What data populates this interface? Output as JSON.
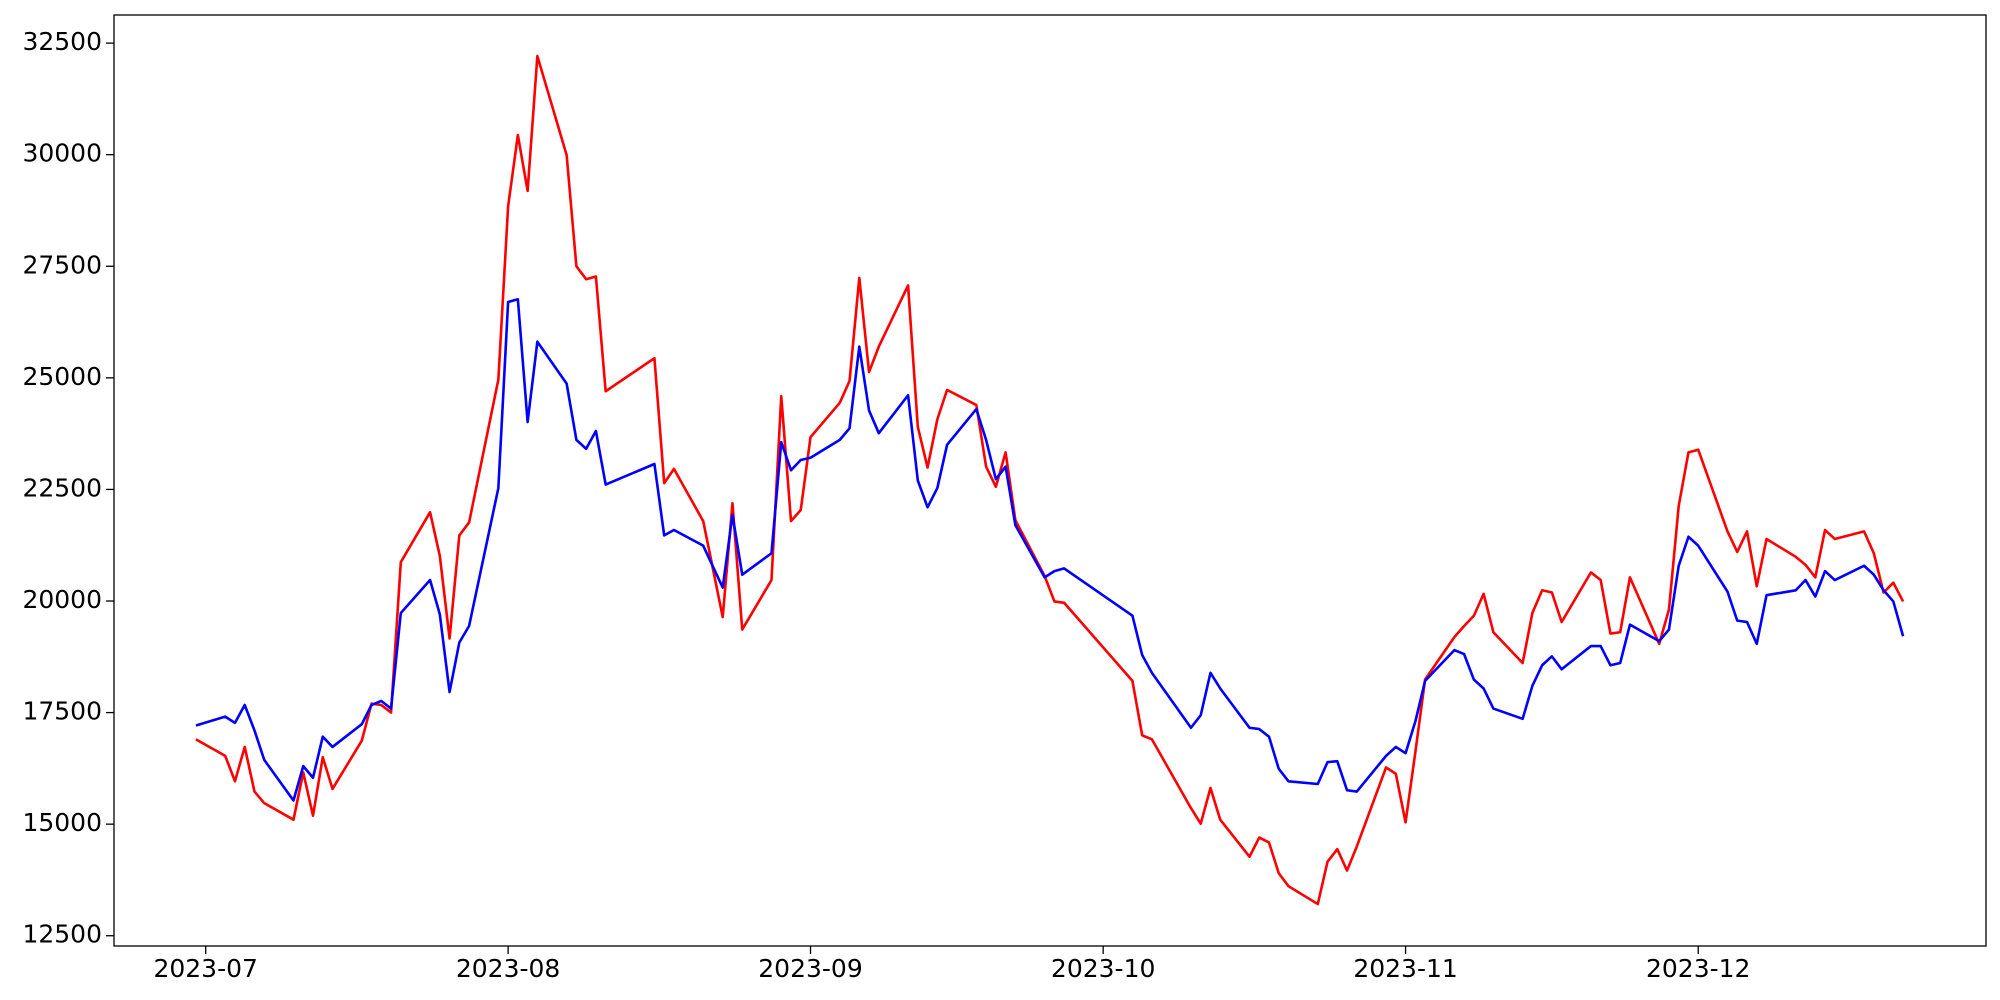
{
  "chart_data": {
    "type": "line",
    "x": [
      -1,
      2,
      3,
      4,
      5,
      6,
      9,
      10,
      11,
      12,
      13,
      16,
      17,
      18,
      19,
      20,
      23,
      24,
      25,
      26,
      27,
      30,
      31,
      32,
      33,
      34,
      37,
      38,
      39,
      40,
      41,
      46,
      47,
      48,
      51,
      53,
      54,
      55,
      58,
      59,
      60,
      61,
      62,
      65,
      66,
      67,
      68,
      69,
      72,
      73,
      74,
      75,
      76,
      79,
      80,
      81,
      82,
      83,
      86,
      87,
      88,
      95,
      96,
      97,
      101,
      102,
      103,
      104,
      107,
      108,
      109,
      110,
      111,
      114,
      115,
      116,
      117,
      118,
      121,
      122,
      123,
      124,
      125,
      128,
      129,
      130,
      131,
      132,
      135,
      136,
      137,
      138,
      139,
      142,
      143,
      144,
      145,
      146,
      149,
      150,
      151,
      152,
      153,
      156,
      157,
      158,
      159,
      160,
      163,
      164,
      165,
      166,
      167,
      170,
      171,
      172,
      173,
      174
    ],
    "series": [
      {
        "color": "#ff0000",
        "values": [
          16900,
          16530,
          15960,
          16730,
          15730,
          15470,
          15100,
          16160,
          15190,
          16500,
          15790,
          16870,
          17700,
          17670,
          17500,
          20870,
          21990,
          21010,
          19160,
          21470,
          21760,
          24960,
          28840,
          30440,
          29190,
          32210,
          29990,
          27500,
          27210,
          27270,
          24700,
          25440,
          22640,
          22960,
          21790,
          19640,
          22190,
          19360,
          20470,
          24590,
          21790,
          22040,
          23670,
          24440,
          24930,
          27240,
          25130,
          25700,
          27070,
          23900,
          22990,
          24070,
          24730,
          24390,
          23010,
          22560,
          23330,
          21810,
          20560,
          19990,
          19960,
          18210,
          16990,
          16900,
          15360,
          15010,
          15810,
          15100,
          14270,
          14700,
          14590,
          13900,
          13610,
          13210,
          14160,
          14440,
          13960,
          14500,
          16270,
          16130,
          15040,
          16610,
          18240,
          19190,
          19440,
          19670,
          20160,
          19300,
          18610,
          19730,
          20240,
          20190,
          19530,
          20640,
          20470,
          19270,
          19300,
          20530,
          19040,
          19810,
          22130,
          23330,
          23390,
          21560,
          21100,
          21560,
          20330,
          21390,
          20990,
          20810,
          20530,
          21590,
          21390,
          21560,
          21070,
          20190,
          20410,
          19990
        ]
      },
      {
        "color": "#0000ff",
        "values": [
          17210,
          17410,
          17270,
          17670,
          17100,
          16440,
          15530,
          16300,
          16040,
          16960,
          16730,
          17240,
          17670,
          17760,
          17590,
          19730,
          20470,
          19700,
          17960,
          19070,
          19440,
          22530,
          26700,
          26760,
          24010,
          25810,
          24870,
          23610,
          23410,
          23810,
          22610,
          23070,
          21470,
          21590,
          21240,
          20300,
          21930,
          20590,
          21070,
          23560,
          22930,
          23160,
          23210,
          23610,
          23870,
          25700,
          24270,
          23760,
          24610,
          22700,
          22100,
          22530,
          23500,
          24300,
          23610,
          22730,
          23010,
          21700,
          20530,
          20670,
          20730,
          19670,
          18790,
          18390,
          17160,
          17440,
          18390,
          18040,
          17160,
          17130,
          16960,
          16240,
          15960,
          15900,
          16390,
          16410,
          15760,
          15730,
          16530,
          16730,
          16590,
          17300,
          18210,
          18900,
          18810,
          18240,
          18040,
          17590,
          17360,
          18100,
          18560,
          18760,
          18470,
          18990,
          18990,
          18560,
          18610,
          19470,
          19100,
          19360,
          20790,
          21440,
          21240,
          20210,
          19560,
          19530,
          19040,
          20130,
          20240,
          20470,
          20100,
          20670,
          20470,
          20790,
          20590,
          20240,
          19990,
          19210
        ]
      }
    ],
    "xlim": [
      -9.4,
      182.5
    ],
    "xticks": [
      {
        "value": 0,
        "label": "2023-07"
      },
      {
        "value": 31,
        "label": "2023-08"
      },
      {
        "value": 62,
        "label": "2023-09"
      },
      {
        "value": 92,
        "label": "2023-10"
      },
      {
        "value": 123,
        "label": "2023-11"
      },
      {
        "value": 153,
        "label": "2023-12"
      }
    ],
    "ylim": [
      12270,
      33130
    ],
    "yticks": [
      12500,
      15000,
      17500,
      20000,
      22500,
      25000,
      27500,
      30000,
      32500
    ],
    "grid": false
  }
}
